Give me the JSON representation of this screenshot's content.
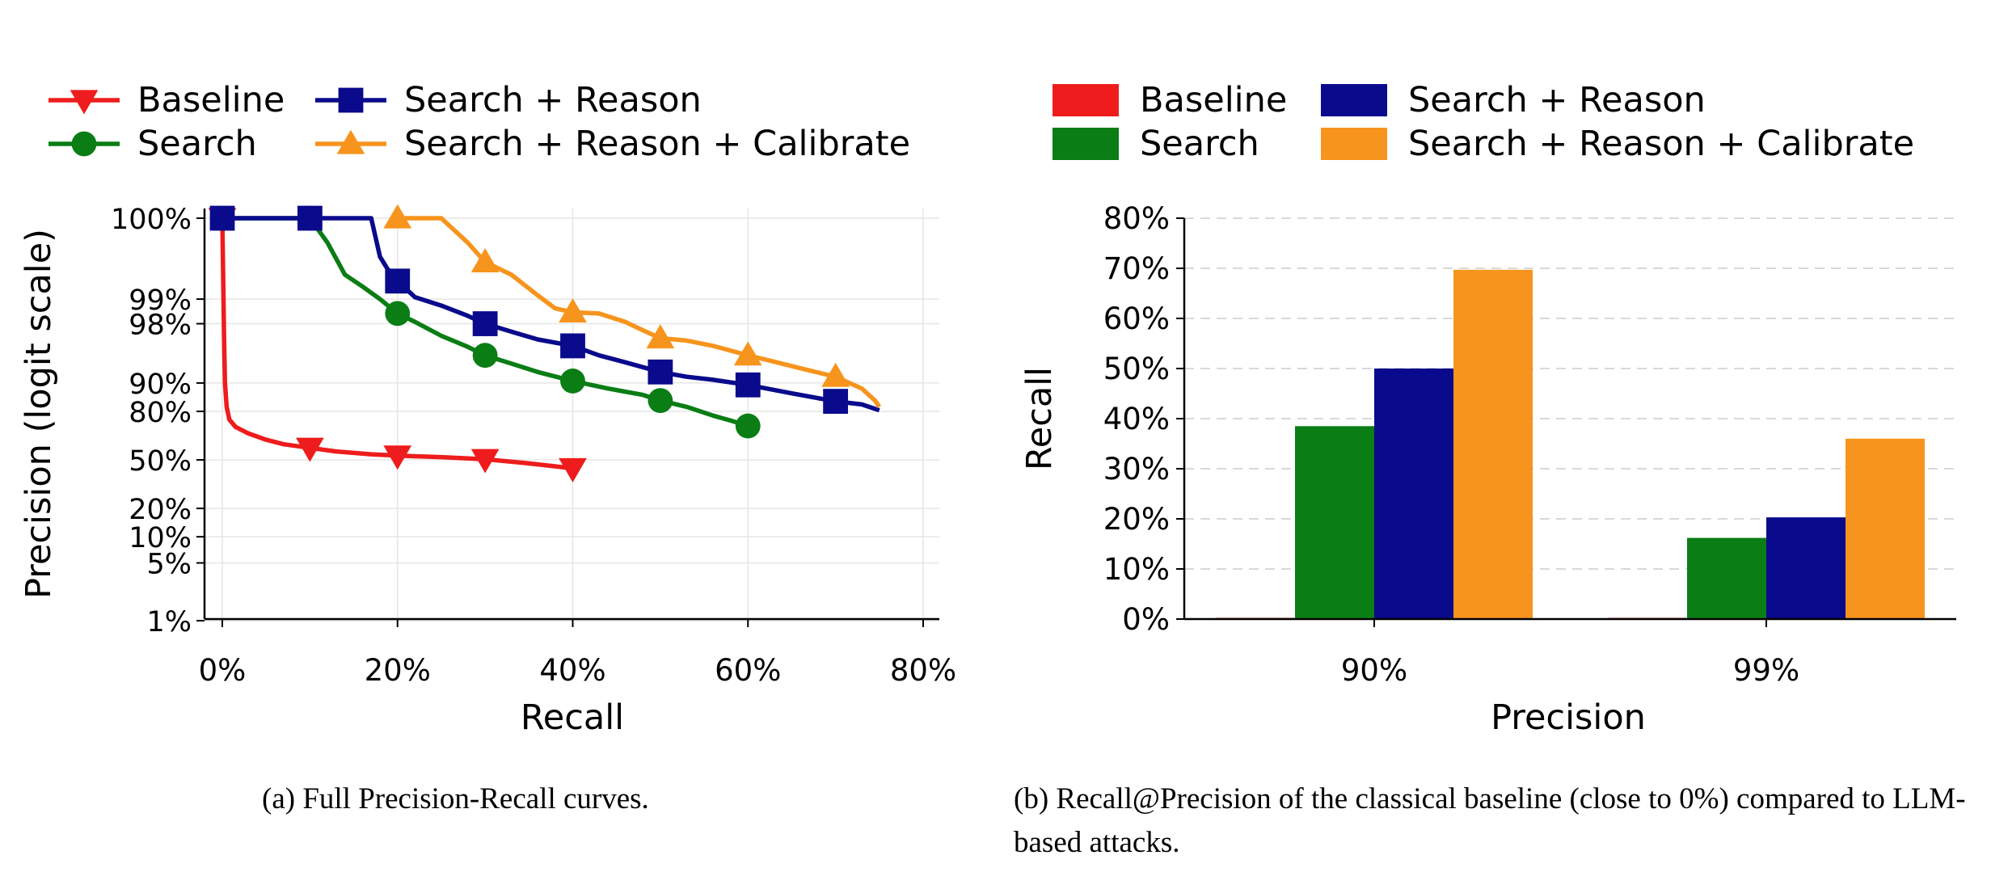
{
  "figure": {
    "caption_a": "(a) Full Precision-Recall curves.",
    "caption_b": "(b) Recall@Precision of the classical baseline (close to 0%) compared to LLM-based attacks."
  },
  "colors": {
    "baseline": "#ee1c1c",
    "search": "#0a7d14",
    "search_reason": "#0a0a8c",
    "search_reason_calibrate": "#f7941d"
  },
  "chart_data": [
    {
      "type": "line",
      "panel": "a",
      "xlabel": "Recall",
      "ylabel": "Precision (logit scale)",
      "yscale": "logit",
      "xlim": [
        0,
        80
      ],
      "xticks": [
        "0%",
        "20%",
        "40%",
        "60%",
        "80%"
      ],
      "yticks": [
        "1%",
        "5%",
        "10%",
        "20%",
        "50%",
        "80%",
        "90%",
        "98%",
        "99%",
        "100%"
      ],
      "grid": true,
      "legend_position": "top",
      "series": [
        {
          "name": "Baseline",
          "color_key": "baseline",
          "marker": "triangle-down",
          "points": [
            [
              0,
              99.9
            ],
            [
              0.2,
              97
            ],
            [
              0.3,
              90
            ],
            [
              0.5,
              82
            ],
            [
              0.8,
              76
            ],
            [
              1.5,
              72
            ],
            [
              3,
              68
            ],
            [
              5,
              64
            ],
            [
              7,
              61
            ],
            [
              10,
              58.5
            ],
            [
              13,
              56
            ],
            [
              17,
              54
            ],
            [
              20,
              53
            ],
            [
              25,
              52
            ],
            [
              30,
              50.5
            ],
            [
              35,
              47.5
            ],
            [
              40,
              44
            ]
          ],
          "markers_at": [
            0,
            10,
            20,
            30,
            40
          ]
        },
        {
          "name": "Search",
          "color_key": "search",
          "marker": "circle",
          "points": [
            [
              0,
              99.9
            ],
            [
              10,
              99.9
            ],
            [
              12,
              99.8
            ],
            [
              14,
              99.5
            ],
            [
              16,
              99.3
            ],
            [
              18,
              99.0
            ],
            [
              20,
              98.5
            ],
            [
              22,
              98.1
            ],
            [
              25,
              97.2
            ],
            [
              28,
              96.2
            ],
            [
              30,
              95.2
            ],
            [
              33,
              94.0
            ],
            [
              36,
              92.5
            ],
            [
              40,
              90.5
            ],
            [
              44,
              88.5
            ],
            [
              48,
              86.5
            ],
            [
              50,
              84.5
            ],
            [
              53,
              82
            ],
            [
              56,
              78
            ],
            [
              58,
              75.5
            ],
            [
              60,
              72.5
            ],
            [
              61,
              71.5
            ]
          ],
          "markers_at": [
            0,
            10,
            20,
            30,
            40,
            50,
            60
          ]
        },
        {
          "name": "Search + Reason",
          "color_key": "search_reason",
          "marker": "square",
          "points": [
            [
              0,
              99.9
            ],
            [
              10,
              99.9
            ],
            [
              17,
              99.9
            ],
            [
              18,
              99.7
            ],
            [
              19,
              99.55
            ],
            [
              20,
              99.4
            ],
            [
              22,
              99.05
            ],
            [
              25,
              98.8
            ],
            [
              28,
              98.4
            ],
            [
              30,
              98.0
            ],
            [
              33,
              97.5
            ],
            [
              36,
              96.9
            ],
            [
              40,
              96.3
            ],
            [
              43,
              95.2
            ],
            [
              46,
              94.2
            ],
            [
              50,
              92.5
            ],
            [
              53,
              91.5
            ],
            [
              56,
              90.8
            ],
            [
              60,
              89.5
            ],
            [
              65,
              87
            ],
            [
              70,
              84.2
            ],
            [
              73,
              83
            ],
            [
              75,
              80.5
            ]
          ],
          "markers_at": [
            0,
            10,
            20,
            30,
            40,
            50,
            60,
            70
          ]
        },
        {
          "name": "Search + Reason + Calibrate",
          "color_key": "search_reason_calibrate",
          "marker": "triangle-up",
          "points": [
            [
              20,
              99.9
            ],
            [
              25,
              99.9
            ],
            [
              28,
              99.8
            ],
            [
              30,
              99.65
            ],
            [
              33,
              99.5
            ],
            [
              36,
              99.1
            ],
            [
              38,
              98.7
            ],
            [
              40,
              98.55
            ],
            [
              43,
              98.5
            ],
            [
              46,
              98.1
            ],
            [
              48,
              97.6
            ],
            [
              50,
              97.0
            ],
            [
              53,
              96.8
            ],
            [
              56,
              96.3
            ],
            [
              60,
              95.2
            ],
            [
              63,
              94.3
            ],
            [
              66,
              93.2
            ],
            [
              70,
              91.5
            ],
            [
              73,
              88.5
            ],
            [
              74.5,
              84.5
            ],
            [
              75,
              82
            ]
          ],
          "markers_at": [
            20,
            30,
            40,
            50,
            60,
            70
          ]
        }
      ]
    },
    {
      "type": "bar",
      "panel": "b",
      "xlabel": "Precision",
      "ylabel": "Recall",
      "categories": [
        "90%",
        "99%"
      ],
      "ylim": [
        0,
        80
      ],
      "yticks": [
        "0%",
        "10%",
        "20%",
        "30%",
        "40%",
        "50%",
        "60%",
        "70%",
        "80%"
      ],
      "grid": "horizontal-dashed",
      "legend_position": "top",
      "series": [
        {
          "name": "Baseline",
          "color_key": "baseline",
          "values": [
            0.1,
            0.1
          ]
        },
        {
          "name": "Search",
          "color_key": "search",
          "values": [
            38.5,
            16.2
          ]
        },
        {
          "name": "Search + Reason",
          "color_key": "search_reason",
          "values": [
            50.0,
            20.3
          ]
        },
        {
          "name": "Search + Reason + Calibrate",
          "color_key": "search_reason_calibrate",
          "values": [
            69.7,
            36.0
          ]
        }
      ]
    }
  ]
}
